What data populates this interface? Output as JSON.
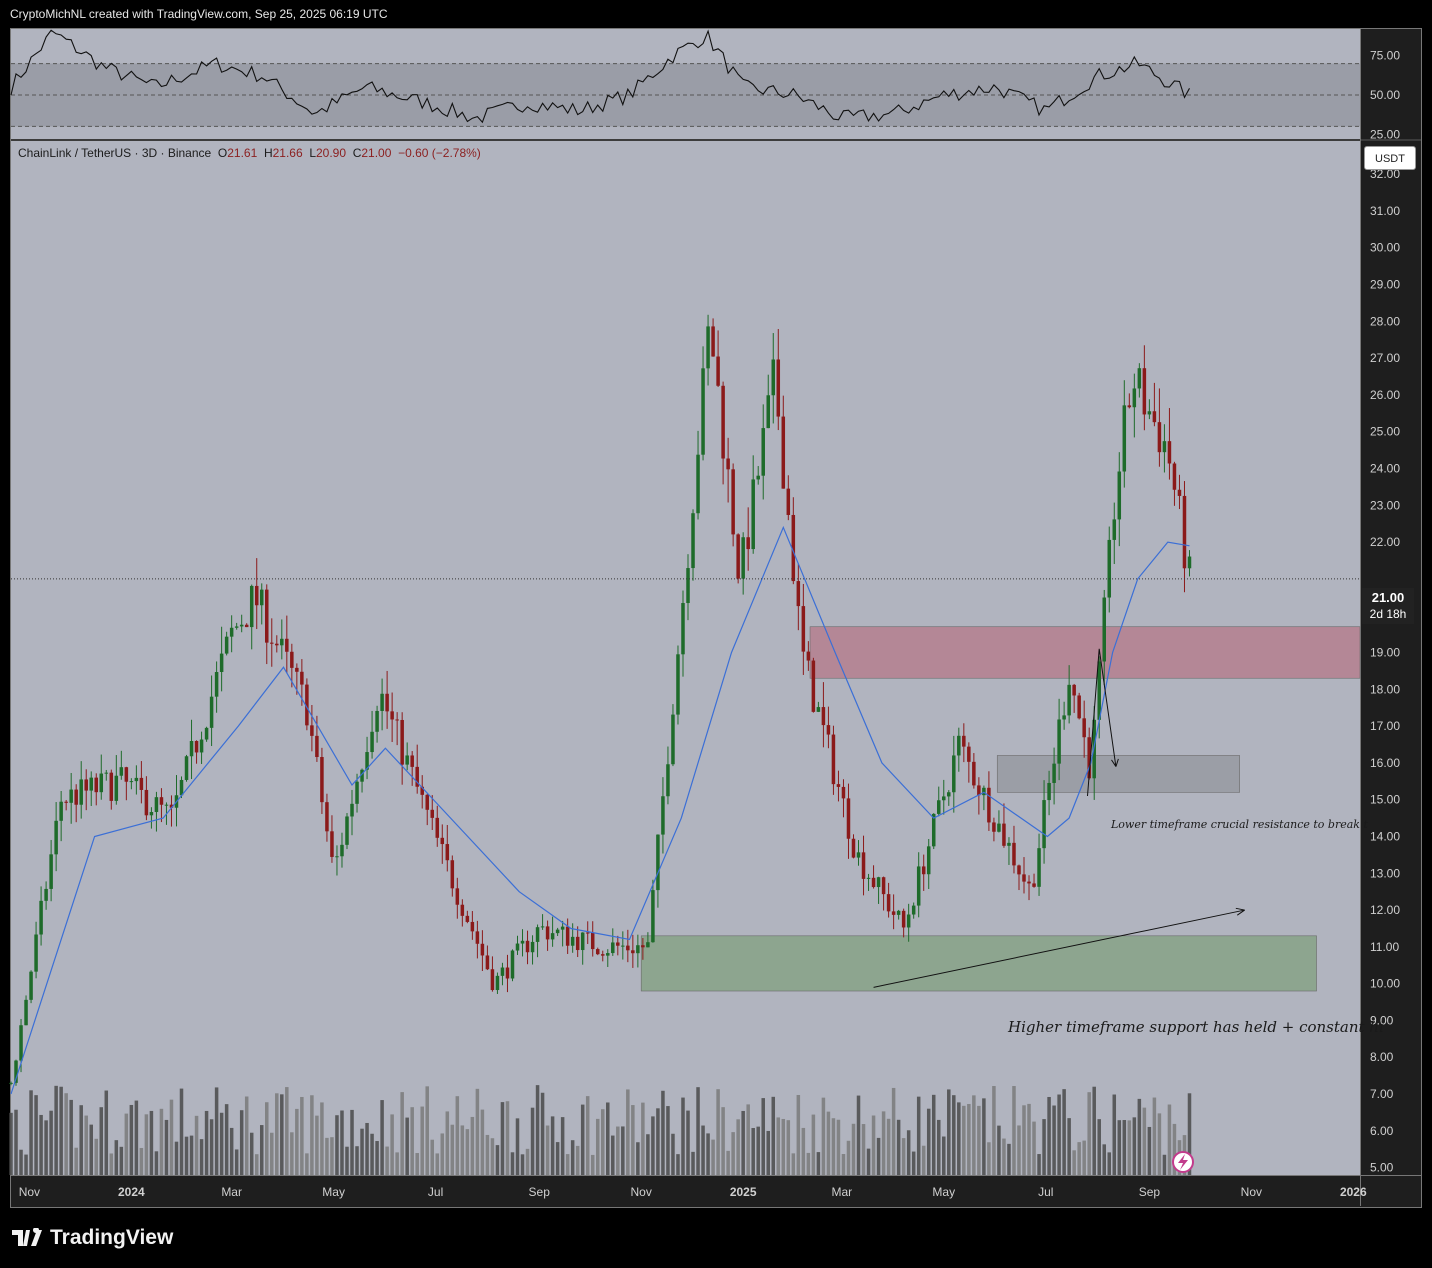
{
  "header": {
    "attribution": "CryptoMichNL created with TradingView.com, Sep 25, 2025 06:19 UTC"
  },
  "legend": {
    "symbol": "ChainLink / TetherUS · 3D · Binance",
    "open_label": "O",
    "open": "21.61",
    "high_label": "H",
    "high": "21.66",
    "low_label": "L",
    "low": "20.90",
    "close_label": "C",
    "close": "21.00",
    "change": "−0.60 (−2.78%)"
  },
  "currency_button": "USDT",
  "last_price": {
    "price": "21.00",
    "countdown": "2d 18h"
  },
  "annotations": {
    "lower_tf": "Lower timeframe crucial resistance to break t",
    "higher_tf": "Higher timeframe support has held + constant hi"
  },
  "brand": "TradingView",
  "colors": {
    "panel_bg": "#b1b4bf",
    "bull": "#1e6b2a",
    "bear": "#8b1a1a",
    "ma": "#3b6fd6",
    "resistance_zone": "#b48796",
    "support_zone": "#8da58f",
    "mid_zone": "#9b9ea6"
  },
  "rsi_axis": [
    "75.00",
    "50.00",
    "25.00"
  ],
  "price_axis": [
    "32.00",
    "31.00",
    "30.00",
    "29.00",
    "28.00",
    "27.00",
    "26.00",
    "25.00",
    "24.00",
    "23.00",
    "22.00",
    "21.00",
    "20.00",
    "19.00",
    "18.00",
    "17.00",
    "16.00",
    "15.00",
    "14.00",
    "13.00",
    "12.00",
    "11.00",
    "10.00",
    "9.00",
    "8.00",
    "7.00",
    "6.00",
    "5.00"
  ],
  "time_axis": [
    "Nov",
    "2024",
    "Mar",
    "May",
    "Jul",
    "Sep",
    "Nov",
    "2025",
    "Mar",
    "May",
    "Jul",
    "Sep",
    "Nov",
    "2026"
  ],
  "chart_data": [
    {
      "type": "candlestick",
      "title": "ChainLink / TetherUS · 3D · Binance",
      "x_range": [
        "2023-10-21",
        "2026-01-05"
      ],
      "ylim": [
        4.8,
        32.9
      ],
      "grid": false,
      "key_points": [
        {
          "date": "2023-10-21",
          "price": 7.3
        },
        {
          "date": "2023-11-20",
          "price": 15.0
        },
        {
          "date": "2023-12-25",
          "price": 15.5
        },
        {
          "date": "2024-01-25",
          "price": 14.5
        },
        {
          "date": "2024-03-01",
          "price": 19.5
        },
        {
          "date": "2024-03-15",
          "price": 20.5
        },
        {
          "date": "2024-04-15",
          "price": 17.5
        },
        {
          "date": "2024-05-01",
          "price": 13.0
        },
        {
          "date": "2024-05-28",
          "price": 18.0
        },
        {
          "date": "2024-07-05",
          "price": 13.5
        },
        {
          "date": "2024-08-05",
          "price": 10.0
        },
        {
          "date": "2024-09-01",
          "price": 11.5
        },
        {
          "date": "2024-10-10",
          "price": 11.0
        },
        {
          "date": "2024-11-05",
          "price": 11.0
        },
        {
          "date": "2024-11-25",
          "price": 20.0
        },
        {
          "date": "2024-12-12",
          "price": 28.0
        },
        {
          "date": "2024-12-30",
          "price": 21.0
        },
        {
          "date": "2025-01-20",
          "price": 26.5
        },
        {
          "date": "2025-02-05",
          "price": 19.0
        },
        {
          "date": "2025-03-10",
          "price": 13.5
        },
        {
          "date": "2025-04-07",
          "price": 11.5
        },
        {
          "date": "2025-05-10",
          "price": 16.5
        },
        {
          "date": "2025-06-22",
          "price": 12.5
        },
        {
          "date": "2025-07-15",
          "price": 18.5
        },
        {
          "date": "2025-07-28",
          "price": 15.8
        },
        {
          "date": "2025-08-12",
          "price": 23.5
        },
        {
          "date": "2025-08-22",
          "price": 26.5
        },
        {
          "date": "2025-09-12",
          "price": 24.5
        },
        {
          "date": "2025-09-25",
          "price": 21.0
        }
      ],
      "extremes": [
        {
          "date": "2024-12-13",
          "high": 31.0
        },
        {
          "date": "2025-08-22",
          "high": 27.9
        },
        {
          "date": "2024-08-05",
          "low": 8.1
        }
      ],
      "moving_average": [
        {
          "date": "2023-10-21",
          "price": 7.0
        },
        {
          "date": "2023-12-10",
          "price": 14.0
        },
        {
          "date": "2024-01-20",
          "price": 14.5
        },
        {
          "date": "2024-03-05",
          "price": 17.0
        },
        {
          "date": "2024-04-01",
          "price": 18.6
        },
        {
          "date": "2024-05-12",
          "price": 15.4
        },
        {
          "date": "2024-06-01",
          "price": 16.4
        },
        {
          "date": "2024-07-10",
          "price": 14.5
        },
        {
          "date": "2024-08-20",
          "price": 12.5
        },
        {
          "date": "2024-09-20",
          "price": 11.5
        },
        {
          "date": "2024-10-25",
          "price": 11.2
        },
        {
          "date": "2024-11-25",
          "price": 14.5
        },
        {
          "date": "2024-12-25",
          "price": 19.0
        },
        {
          "date": "2025-01-25",
          "price": 22.4
        },
        {
          "date": "2025-02-25",
          "price": 19.0
        },
        {
          "date": "2025-03-25",
          "price": 16.0
        },
        {
          "date": "2025-04-25",
          "price": 14.5
        },
        {
          "date": "2025-05-25",
          "price": 15.2
        },
        {
          "date": "2025-07-02",
          "price": 14.0
        },
        {
          "date": "2025-07-15",
          "price": 14.5
        },
        {
          "date": "2025-07-28",
          "price": 16.0
        },
        {
          "date": "2025-08-10",
          "price": 19.0
        },
        {
          "date": "2025-08-25",
          "price": 21.0
        },
        {
          "date": "2025-09-12",
          "price": 22.0
        },
        {
          "date": "2025-09-25",
          "price": 21.9
        }
      ],
      "zones": [
        {
          "name": "resistance",
          "from": "2025-02-10",
          "to": "2026-01-05",
          "low": 18.3,
          "high": 19.7
        },
        {
          "name": "lower-tf",
          "from": "2025-06-02",
          "to": "2025-10-25",
          "low": 15.2,
          "high": 16.2
        },
        {
          "name": "support",
          "from": "2024-11-01",
          "to": "2025-12-10",
          "low": 9.8,
          "high": 11.3
        }
      ],
      "trendline": {
        "from": {
          "date": "2025-03-20",
          "price": 9.9
        },
        "to": {
          "date": "2025-10-28",
          "price": 12.0
        }
      },
      "projection_arrow": [
        {
          "date": "2025-07-26",
          "price": 15.1
        },
        {
          "date": "2025-08-02",
          "price": 19.1
        },
        {
          "date": "2025-08-12",
          "price": 15.9
        }
      ]
    },
    {
      "type": "line",
      "title": "RSI",
      "ylim": [
        22,
        92
      ],
      "levels": [
        70,
        50,
        30
      ],
      "x": [
        "2023-10-21",
        "2023-11-15",
        "2023-12-15",
        "2024-01-15",
        "2024-02-20",
        "2024-03-20",
        "2024-04-20",
        "2024-05-20",
        "2024-06-25",
        "2024-07-25",
        "2024-08-25",
        "2024-09-25",
        "2024-10-25",
        "2024-11-20",
        "2024-12-10",
        "2025-01-01",
        "2025-02-01",
        "2025-03-01",
        "2025-04-01",
        "2025-05-01",
        "2025-06-01",
        "2025-07-01",
        "2025-08-01",
        "2025-08-25",
        "2025-09-25"
      ],
      "values": [
        55,
        90,
        68,
        55,
        70,
        62,
        38,
        55,
        45,
        35,
        45,
        40,
        50,
        75,
        88,
        55,
        50,
        35,
        38,
        50,
        55,
        40,
        62,
        70,
        50
      ]
    }
  ]
}
